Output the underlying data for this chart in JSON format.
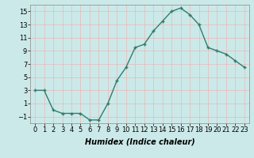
{
  "x": [
    0,
    1,
    2,
    3,
    4,
    5,
    6,
    7,
    8,
    9,
    10,
    11,
    12,
    13,
    14,
    15,
    16,
    17,
    18,
    19,
    20,
    21,
    22,
    23
  ],
  "y": [
    3,
    3,
    0,
    -0.5,
    -0.5,
    -0.5,
    -1.5,
    -1.5,
    1,
    4.5,
    6.5,
    9.5,
    10,
    12,
    13.5,
    15,
    15.5,
    14.5,
    13,
    9.5,
    9,
    8.5,
    7.5,
    6.5
  ],
  "line_color": "#2e7d6e",
  "marker": "+",
  "marker_size": 3,
  "marker_lw": 1.0,
  "line_width": 1.0,
  "bg_color": "#cce9e9",
  "grid_color": "#e8b8b8",
  "xlabel": "Humidex (Indice chaleur)",
  "ylim": [
    -2,
    16
  ],
  "yticks": [
    -1,
    1,
    3,
    5,
    7,
    9,
    11,
    13,
    15
  ],
  "xlim": [
    -0.5,
    23.5
  ],
  "xticks": [
    0,
    1,
    2,
    3,
    4,
    5,
    6,
    7,
    8,
    9,
    10,
    11,
    12,
    13,
    14,
    15,
    16,
    17,
    18,
    19,
    20,
    21,
    22,
    23
  ],
  "xtick_labels": [
    "0",
    "1",
    "2",
    "3",
    "4",
    "5",
    "6",
    "7",
    "8",
    "9",
    "10",
    "11",
    "12",
    "13",
    "14",
    "15",
    "16",
    "17",
    "18",
    "19",
    "20",
    "21",
    "22",
    "23"
  ]
}
